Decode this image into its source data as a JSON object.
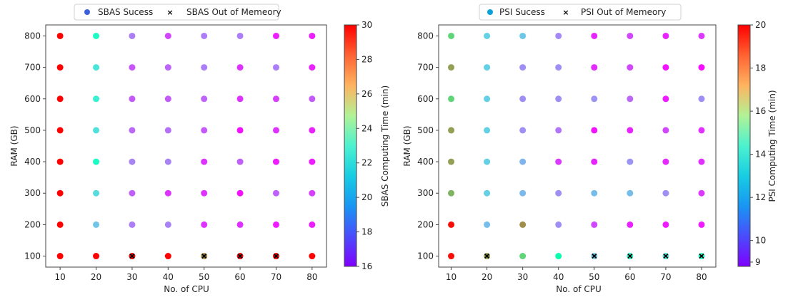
{
  "chart_data": [
    {
      "type": "scatter",
      "id": "sbas",
      "xlabel": "No. of CPU",
      "ylabel": "RAM (GB)",
      "x_ticks": [
        10,
        20,
        30,
        40,
        50,
        60,
        70,
        80
      ],
      "y_ticks": [
        100,
        200,
        300,
        400,
        500,
        600,
        700,
        800
      ],
      "xlim": [
        6,
        84
      ],
      "ylim": [
        65,
        835
      ],
      "legend": {
        "placement": "top-center",
        "entries": [
          {
            "label": "SBAS Sucess",
            "marker": "circle",
            "color": "#3a5fd9"
          },
          {
            "label": "SBAS Out of Memeory",
            "marker": "x",
            "color": "#000000"
          }
        ]
      },
      "colorbar": {
        "label": "SBAS Computing Time (min)",
        "range": [
          16,
          30
        ],
        "ticks": [
          16,
          18,
          20,
          22,
          24,
          26,
          28,
          30
        ],
        "colormap": "rainbow"
      },
      "cpu": [
        10,
        20,
        30,
        40,
        50,
        60,
        70,
        80
      ],
      "ram": [
        800,
        700,
        600,
        500,
        400,
        300,
        200,
        100
      ],
      "time_min": [
        [
          30,
          22.2,
          18.3,
          17.2,
          18.3,
          18.3,
          16.5,
          16.5
        ],
        [
          30,
          21.0,
          17.5,
          17.8,
          18.3,
          16.9,
          18.3,
          16.6
        ],
        [
          30,
          21.5,
          17.6,
          17.6,
          17.8,
          16.9,
          17.1,
          17.6
        ],
        [
          30,
          20.8,
          17.9,
          18.0,
          17.6,
          16.3,
          16.9,
          16.6
        ],
        [
          30,
          22.2,
          18.4,
          18.4,
          16.9,
          17.7,
          16.5,
          16.5
        ],
        [
          30,
          20.6,
          17.7,
          16.9,
          16.9,
          16.3,
          17.7,
          17.1
        ],
        [
          30,
          19.9,
          18.3,
          18.4,
          16.9,
          16.9,
          16.5,
          16.5
        ],
        [
          30,
          30,
          30,
          30,
          27.5,
          30,
          30,
          30
        ]
      ],
      "out_of_memory": [
        {
          "cpu": 30,
          "ram": 100
        },
        {
          "cpu": 50,
          "ram": 100
        },
        {
          "cpu": 60,
          "ram": 100
        },
        {
          "cpu": 70,
          "ram": 100
        }
      ]
    },
    {
      "type": "scatter",
      "id": "psi",
      "xlabel": "No. of CPU",
      "ylabel": "RAM (GB)",
      "x_ticks": [
        10,
        20,
        30,
        40,
        50,
        60,
        70,
        80
      ],
      "y_ticks": [
        100,
        200,
        300,
        400,
        500,
        600,
        700,
        800
      ],
      "xlim": [
        6.5,
        84
      ],
      "ylim": [
        65,
        835
      ],
      "legend": {
        "placement": "top-center",
        "entries": [
          {
            "label": "PSI Sucess",
            "marker": "circle",
            "color": "#0aa0d8"
          },
          {
            "label": "PSI Out of Memeory",
            "marker": "x",
            "color": "#000000"
          }
        ]
      },
      "colorbar": {
        "label": "PSI Computing Time (min)",
        "range": [
          8.8,
          20
        ],
        "ticks": [
          9,
          10,
          12,
          14,
          16,
          18,
          20
        ],
        "colormap": "rainbow"
      },
      "cpu": [
        10,
        20,
        30,
        40,
        50,
        60,
        70,
        80
      ],
      "ram": [
        800,
        700,
        600,
        500,
        400,
        300,
        200,
        100
      ],
      "time_min": [
        [
          16.5,
          12.2,
          12.0,
          10.8,
          9.3,
          9.8,
          9.3,
          9.6
        ],
        [
          17.6,
          12.2,
          10.9,
          10.9,
          9.4,
          9.8,
          9.1,
          9.0
        ],
        [
          16.5,
          12.2,
          10.9,
          10.9,
          11.0,
          10.3,
          9.2,
          10.9
        ],
        [
          17.6,
          12.2,
          10.9,
          10.5,
          9.1,
          9.3,
          9.8,
          9.5
        ],
        [
          17.6,
          12.2,
          11.6,
          9.6,
          9.3,
          11.0,
          9.4,
          9.5
        ],
        [
          17.2,
          12.2,
          11.7,
          10.9,
          11.8,
          11.8,
          10.9,
          9.6
        ],
        [
          19.8,
          11.8,
          17.9,
          10.9,
          9.8,
          9.3,
          9.2,
          9.2
        ],
        [
          19.8,
          17.6,
          16.5,
          14.6,
          12.0,
          13.6,
          12.8,
          13.6
        ]
      ],
      "out_of_memory": [
        {
          "cpu": 20,
          "ram": 100
        },
        {
          "cpu": 50,
          "ram": 100
        },
        {
          "cpu": 60,
          "ram": 100
        },
        {
          "cpu": 70,
          "ram": 100
        },
        {
          "cpu": 80,
          "ram": 100
        }
      ]
    }
  ]
}
